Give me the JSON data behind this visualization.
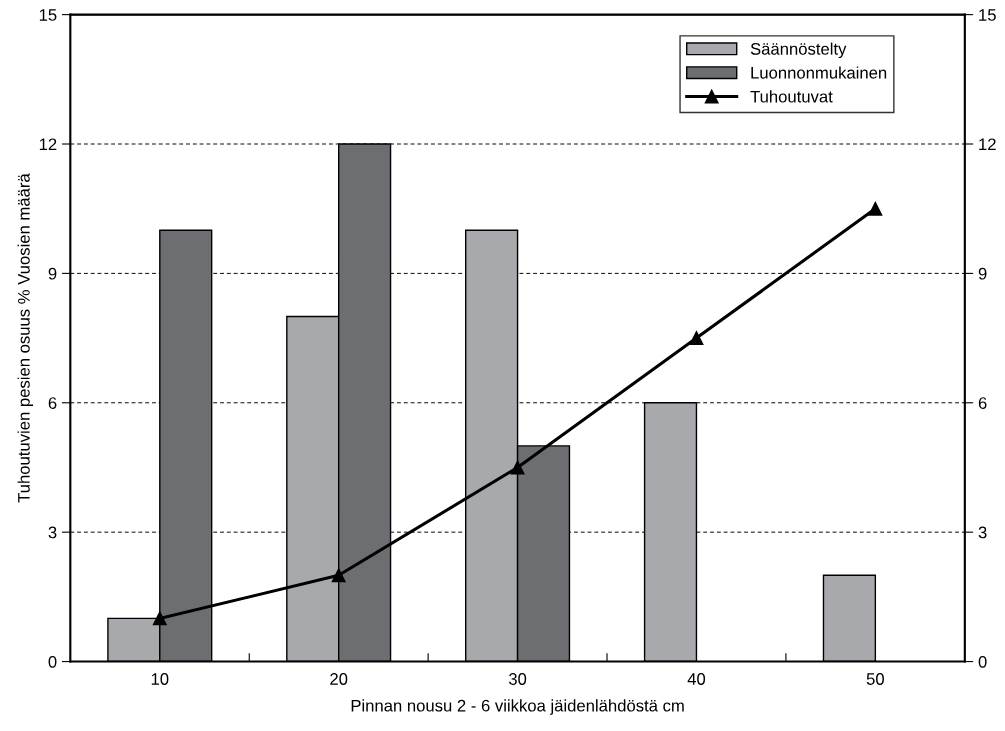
{
  "chart_data": {
    "type": "bar",
    "xlabel": "Pinnan nousu 2 - 6 viikkoa jäidenlähdöstä cm",
    "ylabel": "Tuhoutuvien pesien osuus % Vuosien määrä",
    "categories": [
      "10",
      "20",
      "30",
      "40",
      "50"
    ],
    "series": [
      {
        "name": "Säännöstelty",
        "color": "#a7a9ac",
        "values": [
          1,
          8,
          10,
          6,
          2
        ]
      },
      {
        "name": "Luonnonmukainen",
        "color": "#6d6e71",
        "values": [
          10,
          12,
          5,
          null,
          null
        ]
      },
      {
        "name": "Tuhoutuvat",
        "type": "line",
        "color": "#000000",
        "marker": "triangle",
        "line_style": "solid",
        "values": [
          1,
          2,
          4.5,
          7.5,
          10.5
        ]
      }
    ],
    "ylim": [
      0,
      15
    ],
    "yticks": [
      0,
      3,
      6,
      9,
      12,
      15
    ],
    "y2lim": [
      0,
      15
    ],
    "y2ticks": [
      0,
      3,
      6,
      9,
      12,
      15
    ],
    "grid": "y",
    "legend": "top right"
  }
}
